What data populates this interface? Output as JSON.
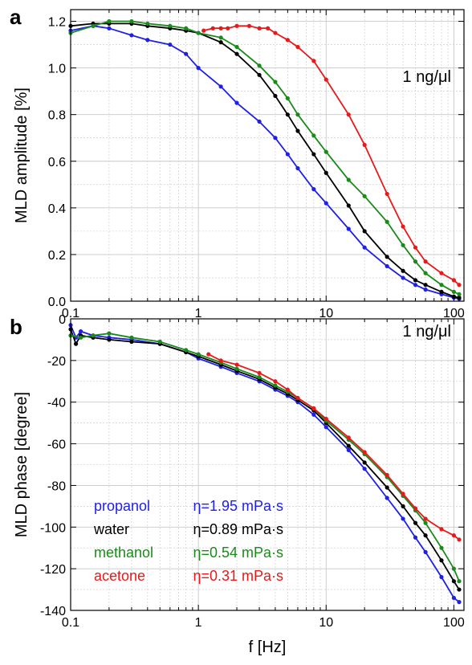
{
  "colors": {
    "propanol": "#1f1fe6",
    "water": "#000000",
    "methanol": "#1a8a1a",
    "acetone": "#e61a1a",
    "grid": "#c8c8c8",
    "axis": "#000000"
  },
  "x_axis_label": "f [Hz]",
  "chart_data": [
    {
      "type": "line",
      "panel_label": "a",
      "annotation": "1 ng/μl",
      "ylabel": "MLD amplitude [%]",
      "xscale": "log",
      "xlim": [
        0.1,
        120
      ],
      "ylim": [
        0,
        1.25
      ],
      "grid": true,
      "xticks": [
        {
          "v": 0.1,
          "label": "0.1"
        },
        {
          "v": 1,
          "label": "1"
        },
        {
          "v": 10,
          "label": "10"
        },
        {
          "v": 100,
          "label": "100"
        }
      ],
      "yticks": [
        {
          "v": 0.0,
          "label": "0.0"
        },
        {
          "v": 0.2,
          "label": "0.2"
        },
        {
          "v": 0.4,
          "label": "0.4"
        },
        {
          "v": 0.6,
          "label": "0.6"
        },
        {
          "v": 0.8,
          "label": "0.8"
        },
        {
          "v": 1.0,
          "label": "1.0"
        },
        {
          "v": 1.2,
          "label": "1.2"
        }
      ],
      "series": [
        {
          "key": "propanol",
          "x": [
            0.1,
            0.15,
            0.2,
            0.3,
            0.4,
            0.6,
            0.8,
            1,
            1.5,
            2,
            3,
            4,
            5,
            6,
            8,
            10,
            15,
            20,
            30,
            40,
            50,
            60,
            80,
            100,
            110
          ],
          "y": [
            1.16,
            1.18,
            1.17,
            1.14,
            1.12,
            1.1,
            1.06,
            1.0,
            0.92,
            0.85,
            0.77,
            0.7,
            0.63,
            0.57,
            0.48,
            0.42,
            0.31,
            0.23,
            0.15,
            0.1,
            0.07,
            0.05,
            0.03,
            0.015,
            0.01
          ]
        },
        {
          "key": "water",
          "x": [
            0.1,
            0.15,
            0.2,
            0.3,
            0.4,
            0.6,
            0.8,
            1,
            1.5,
            2,
            3,
            4,
            5,
            6,
            8,
            10,
            15,
            20,
            30,
            40,
            50,
            60,
            80,
            100,
            110
          ],
          "y": [
            1.18,
            1.19,
            1.19,
            1.19,
            1.18,
            1.17,
            1.16,
            1.15,
            1.11,
            1.06,
            0.97,
            0.88,
            0.8,
            0.73,
            0.63,
            0.55,
            0.41,
            0.3,
            0.19,
            0.13,
            0.09,
            0.07,
            0.04,
            0.02,
            0.015
          ]
        },
        {
          "key": "methanol",
          "x": [
            0.1,
            0.15,
            0.2,
            0.3,
            0.4,
            0.6,
            0.8,
            1,
            1.5,
            2,
            3,
            4,
            5,
            6,
            8,
            10,
            15,
            20,
            30,
            40,
            50,
            60,
            80,
            100,
            110
          ],
          "y": [
            1.15,
            1.18,
            1.2,
            1.2,
            1.19,
            1.18,
            1.17,
            1.15,
            1.13,
            1.09,
            1.01,
            0.94,
            0.87,
            0.8,
            0.71,
            0.64,
            0.52,
            0.45,
            0.34,
            0.24,
            0.17,
            0.12,
            0.07,
            0.04,
            0.03
          ]
        },
        {
          "key": "acetone",
          "x": [
            1.1,
            1.3,
            1.5,
            1.7,
            2,
            2.5,
            3,
            3.5,
            4,
            5,
            6,
            8,
            10,
            15,
            20,
            30,
            40,
            50,
            60,
            80,
            100,
            110
          ],
          "y": [
            1.16,
            1.17,
            1.17,
            1.17,
            1.18,
            1.18,
            1.17,
            1.17,
            1.15,
            1.12,
            1.09,
            1.03,
            0.95,
            0.8,
            0.67,
            0.46,
            0.32,
            0.23,
            0.17,
            0.12,
            0.09,
            0.07
          ]
        }
      ]
    },
    {
      "type": "line",
      "panel_label": "b",
      "annotation": "1 ng/μl",
      "ylabel": "MLD phase [degree]",
      "xscale": "log",
      "xlim": [
        0.1,
        120
      ],
      "ylim": [
        -140,
        0
      ],
      "grid": true,
      "xticks": [
        {
          "v": 0.1,
          "label": "0.1"
        },
        {
          "v": 1,
          "label": "1"
        },
        {
          "v": 10,
          "label": "10"
        },
        {
          "v": 100,
          "label": "100"
        }
      ],
      "yticks": [
        {
          "v": 0,
          "label": "0"
        },
        {
          "v": -20,
          "label": "-20"
        },
        {
          "v": -40,
          "label": "-40"
        },
        {
          "v": -60,
          "label": "-60"
        },
        {
          "v": -80,
          "label": "-80"
        },
        {
          "v": -100,
          "label": "-100"
        },
        {
          "v": -120,
          "label": "-120"
        },
        {
          "v": -140,
          "label": "-140"
        }
      ],
      "series": [
        {
          "key": "propanol",
          "x": [
            0.1,
            0.11,
            0.12,
            0.15,
            0.2,
            0.3,
            0.5,
            0.8,
            1,
            1.5,
            2,
            3,
            4,
            5,
            6,
            8,
            10,
            15,
            20,
            30,
            40,
            50,
            60,
            80,
            100,
            110
          ],
          "y": [
            -3,
            -9,
            -6,
            -8,
            -9,
            -10,
            -12,
            -16,
            -19,
            -23,
            -26,
            -30,
            -34,
            -37,
            -40,
            -46,
            -52,
            -63,
            -72,
            -86,
            -96,
            -105,
            -112,
            -124,
            -134,
            -136
          ]
        },
        {
          "key": "water",
          "x": [
            0.1,
            0.11,
            0.12,
            0.15,
            0.2,
            0.3,
            0.5,
            0.8,
            1,
            1.5,
            2,
            3,
            4,
            5,
            6,
            8,
            10,
            15,
            20,
            30,
            40,
            50,
            60,
            80,
            100,
            110
          ],
          "y": [
            -5,
            -12,
            -8,
            -9,
            -10,
            -11,
            -12,
            -16,
            -18,
            -22,
            -25,
            -29,
            -33,
            -36,
            -39,
            -44,
            -50,
            -61,
            -69,
            -81,
            -90,
            -98,
            -104,
            -116,
            -126,
            -130
          ]
        },
        {
          "key": "methanol",
          "x": [
            0.1,
            0.12,
            0.15,
            0.2,
            0.3,
            0.5,
            0.8,
            1,
            1.5,
            2,
            3,
            4,
            5,
            6,
            8,
            10,
            15,
            20,
            30,
            40,
            50,
            60,
            80,
            100,
            110
          ],
          "y": [
            -8,
            -9,
            -8,
            -7,
            -9,
            -11,
            -15,
            -17,
            -21,
            -24,
            -28,
            -32,
            -35,
            -38,
            -43,
            -49,
            -58,
            -65,
            -76,
            -85,
            -92,
            -98,
            -110,
            -120,
            -126
          ]
        },
        {
          "key": "acetone",
          "x": [
            1.2,
            1.5,
            2,
            3,
            4,
            5,
            6,
            8,
            10,
            15,
            20,
            30,
            40,
            50,
            60,
            80,
            100,
            110
          ],
          "y": [
            -17,
            -20,
            -22,
            -26,
            -30,
            -34,
            -38,
            -43,
            -48,
            -57,
            -64,
            -75,
            -84,
            -91,
            -96,
            -101,
            -104,
            -106
          ]
        }
      ]
    }
  ],
  "legend": [
    {
      "key": "propanol",
      "name": "propanol",
      "eta": "η=1.95 mPa·s"
    },
    {
      "key": "water",
      "name": "water",
      "eta": "η=0.89 mPa·s"
    },
    {
      "key": "methanol",
      "name": "methanol",
      "eta": "η=0.54 mPa·s"
    },
    {
      "key": "acetone",
      "name": "acetone",
      "eta": "η=0.31 mPa·s"
    }
  ]
}
